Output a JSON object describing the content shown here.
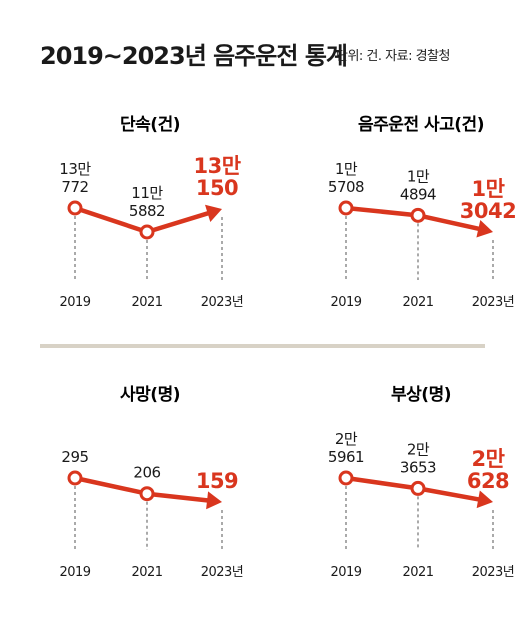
{
  "header": {
    "title": "2019~2023년 음주운전 통계",
    "source": "단위: 건. 자료: 경찰청"
  },
  "colors": {
    "accent": "#d9361e",
    "divider": "#d8d2c6",
    "text": "#1a1a1a"
  },
  "chart_data": [
    {
      "type": "line",
      "title": "단속(건)",
      "categories": [
        "2019",
        "2021",
        "2023년"
      ],
      "values": [
        130772,
        115882,
        130150
      ],
      "value_labels": [
        [
          "13만",
          "772"
        ],
        [
          "11만",
          "5882"
        ],
        [
          "13만",
          "150"
        ]
      ],
      "highlight_last": true
    },
    {
      "type": "line",
      "title": "음주운전 사고(건)",
      "categories": [
        "2019",
        "2021",
        "2023년"
      ],
      "values": [
        15708,
        14894,
        13042
      ],
      "value_labels": [
        [
          "1만",
          "5708"
        ],
        [
          "1만",
          "4894"
        ],
        [
          "1만",
          "3042"
        ]
      ],
      "highlight_last": true
    },
    {
      "type": "line",
      "title": "사망(명)",
      "categories": [
        "2019",
        "2021",
        "2023년"
      ],
      "values": [
        295,
        206,
        159
      ],
      "value_labels": [
        [
          "295"
        ],
        [
          "206"
        ],
        [
          "159"
        ]
      ],
      "highlight_last": true
    },
    {
      "type": "line",
      "title": "부상(명)",
      "categories": [
        "2019",
        "2021",
        "2023년"
      ],
      "values": [
        25961,
        23653,
        20628
      ],
      "value_labels": [
        [
          "2만",
          "5961"
        ],
        [
          "2만",
          "3653"
        ],
        [
          "2만",
          "628"
        ]
      ],
      "highlight_last": true
    }
  ]
}
